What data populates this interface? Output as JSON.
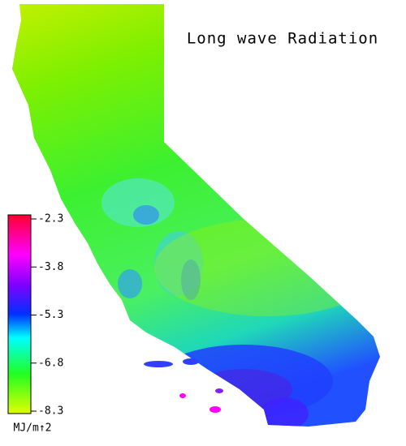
{
  "title": "Long wave Radiation",
  "colorbar": {
    "label": "MJ/m↑2",
    "ticks": [
      -2.3,
      -3.8,
      -5.3,
      -6.8,
      -8.3
    ]
  }
}
